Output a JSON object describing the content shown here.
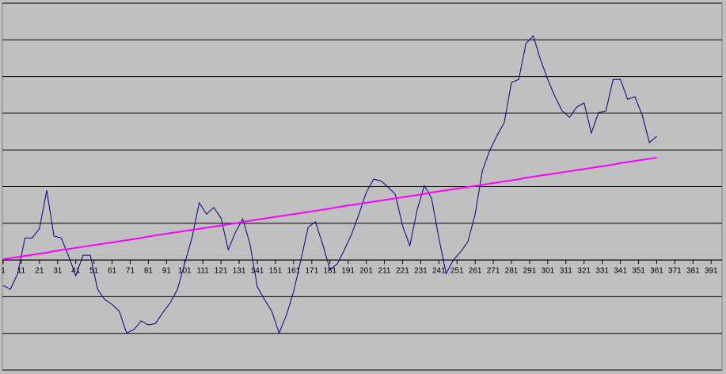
{
  "chart_data": {
    "type": "line",
    "x": [
      1,
      5,
      9,
      13,
      17,
      21,
      25,
      29,
      33,
      37,
      41,
      45,
      49,
      53,
      57,
      61,
      65,
      69,
      73,
      77,
      81,
      85,
      89,
      93,
      97,
      101,
      105,
      109,
      113,
      117,
      121,
      125,
      129,
      133,
      137,
      141,
      145,
      149,
      153,
      157,
      161,
      165,
      169,
      173,
      177,
      181,
      185,
      189,
      193,
      197,
      201,
      205,
      209,
      213,
      217,
      221,
      225,
      229,
      233,
      237,
      241,
      245,
      249,
      253,
      257,
      261,
      265,
      269,
      273,
      277,
      281,
      285,
      289,
      293,
      297,
      301,
      305,
      309,
      313,
      317,
      321,
      325,
      329,
      333,
      337,
      341,
      345,
      349,
      353,
      357,
      361
    ],
    "series": [
      {
        "color": "#000080",
        "values": [
          -0.69,
          -0.8,
          -0.37,
          0.6,
          0.6,
          0.86,
          1.9,
          0.65,
          0.6,
          0.11,
          -0.43,
          0.13,
          0.13,
          -0.8,
          -1.08,
          -1.21,
          -1.4,
          -1.99,
          -1.9,
          -1.66,
          -1.77,
          -1.73,
          -1.43,
          -1.17,
          -0.8,
          -0.09,
          0.6,
          1.56,
          1.25,
          1.43,
          1.14,
          0.28,
          0.76,
          1.12,
          0.43,
          -0.73,
          -1.08,
          -1.4,
          -1.99,
          -1.51,
          -0.86,
          0,
          0.89,
          1.04,
          0.43,
          -0.26,
          -0.11,
          0.28,
          0.71,
          1.25,
          1.84,
          2.2,
          2.16,
          1.99,
          1.79,
          0.93,
          0.39,
          1.36,
          2.03,
          1.68,
          0.6,
          -0.37,
          0,
          0.22,
          0.5,
          1.25,
          2.44,
          2.98,
          3.39,
          3.74,
          4.84,
          4.92,
          5.9,
          6.11,
          5.46,
          4.92,
          4.45,
          4.06,
          3.89,
          4.17,
          4.28,
          3.46,
          4.02,
          4.06,
          4.92,
          4.92,
          4.38,
          4.45,
          3.95,
          3.2,
          3.37
        ]
      },
      {
        "color": "#ff00ff",
        "values": [
          0.02,
          0.05,
          0.08,
          0.11,
          0.14,
          0.17,
          0.2,
          0.24,
          0.27,
          0.3,
          0.33,
          0.36,
          0.39,
          0.42,
          0.45,
          0.48,
          0.51,
          0.54,
          0.57,
          0.6,
          0.64,
          0.67,
          0.7,
          0.73,
          0.76,
          0.79,
          0.82,
          0.85,
          0.88,
          0.91,
          0.94,
          0.97,
          1.0,
          1.04,
          1.07,
          1.1,
          1.13,
          1.16,
          1.19,
          1.22,
          1.25,
          1.28,
          1.31,
          1.34,
          1.37,
          1.4,
          1.44,
          1.47,
          1.5,
          1.53,
          1.56,
          1.59,
          1.62,
          1.65,
          1.68,
          1.71,
          1.74,
          1.77,
          1.8,
          1.84,
          1.87,
          1.9,
          1.93,
          1.96,
          1.99,
          2.02,
          2.05,
          2.08,
          2.11,
          2.14,
          2.17,
          2.2,
          2.24,
          2.27,
          2.3,
          2.33,
          2.36,
          2.39,
          2.42,
          2.45,
          2.48,
          2.51,
          2.54,
          2.57,
          2.6,
          2.64,
          2.67,
          2.7,
          2.73,
          2.76,
          2.79
        ]
      }
    ],
    "xlim": [
      1,
      397
    ],
    "xticks": [
      1,
      11,
      21,
      31,
      41,
      51,
      61,
      71,
      81,
      91,
      101,
      111,
      121,
      131,
      141,
      151,
      161,
      171,
      181,
      191,
      201,
      211,
      221,
      231,
      241,
      251,
      261,
      271,
      281,
      291,
      301,
      311,
      321,
      331,
      341,
      351,
      361,
      371,
      381,
      391
    ],
    "ylim": [
      -3,
      7
    ],
    "yticks": [
      -3,
      -2,
      -1,
      0,
      1,
      2,
      3,
      4,
      5,
      6,
      7
    ],
    "grid": true
  }
}
